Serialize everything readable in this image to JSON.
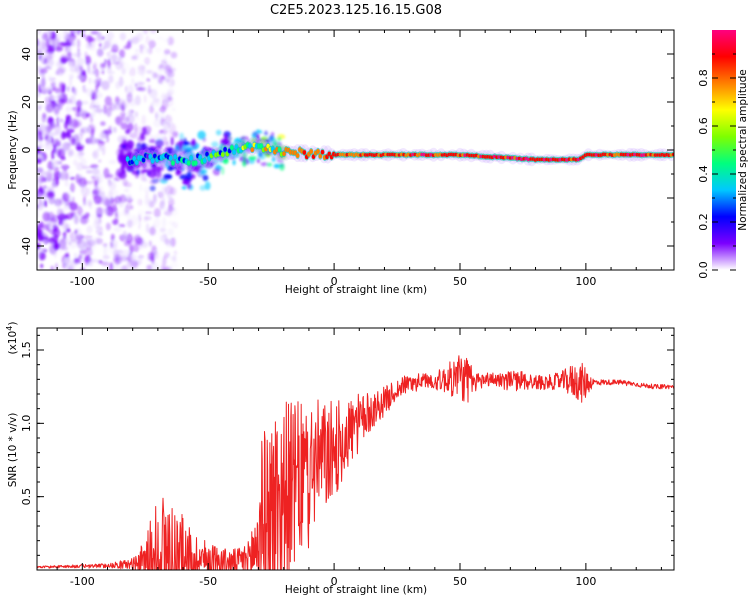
{
  "title": "C2E5.2023.125.16.15.G08",
  "chart_data": [
    {
      "type": "heatmap",
      "name": "spectrogram",
      "xlabel": "Height of straight line (km)",
      "ylabel": "Frequency (Hz)",
      "xlim": [
        -118,
        135
      ],
      "ylim": [
        -50,
        50
      ],
      "x_ticks": [
        -100,
        -50,
        0,
        50,
        100
      ],
      "y_ticks": [
        -40,
        -20,
        0,
        20,
        40
      ],
      "colorbar": {
        "label": "Normalized spectral amplitude",
        "range": [
          0,
          1
        ],
        "ticks": [
          0.0,
          0.2,
          0.4,
          0.6,
          0.8
        ],
        "colors": [
          "#ffffff",
          "#7b00ff",
          "#0000ff",
          "#00c8ff",
          "#00ff7f",
          "#7fff00",
          "#ffff00",
          "#ff7f00",
          "#ff0000",
          "#ff007f"
        ]
      },
      "signal_track": [
        {
          "x": -118,
          "y": 0,
          "amp": 0.2
        },
        {
          "x": -80,
          "y": -4,
          "amp": 0.3
        },
        {
          "x": -70,
          "y": -3,
          "amp": 0.4
        },
        {
          "x": -60,
          "y": -5,
          "amp": 0.45
        },
        {
          "x": -50,
          "y": -3,
          "amp": 0.5
        },
        {
          "x": -40,
          "y": 0,
          "amp": 0.6
        },
        {
          "x": -30,
          "y": 2,
          "amp": 0.75
        },
        {
          "x": -20,
          "y": -1,
          "amp": 0.8
        },
        {
          "x": 0,
          "y": -2,
          "amp": 0.9
        },
        {
          "x": 50,
          "y": -2,
          "amp": 0.95
        },
        {
          "x": 80,
          "y": -4,
          "amp": 0.95
        },
        {
          "x": 97,
          "y": -4,
          "amp": 0.95
        },
        {
          "x": 100,
          "y": -2,
          "amp": 0.95
        },
        {
          "x": 135,
          "y": -2,
          "amp": 0.9
        }
      ]
    },
    {
      "type": "line",
      "name": "snr",
      "xlabel": "Height of straight line (km)",
      "ylabel": "SNR (10 * v/v)",
      "y_multiplier": "(x10",
      "y_multiplier_exp": "4",
      "y_multiplier_close": ")",
      "xlim": [
        -118,
        135
      ],
      "ylim": [
        0,
        16500
      ],
      "x_ticks": [
        -100,
        -50,
        0,
        50,
        100
      ],
      "y_ticks": [
        5000,
        10000,
        15000
      ],
      "y_tick_labels": [
        "0.5",
        "1.0",
        "1.5"
      ],
      "color": "#ee2222",
      "envelope": {
        "x": [
          -118,
          -90,
          -80,
          -76,
          -72,
          -70,
          -66,
          -62,
          -58,
          -54,
          -50,
          -46,
          -42,
          -38,
          -34,
          -31,
          -29,
          -26,
          -23,
          -20,
          -17,
          -14,
          -11,
          -8,
          -5,
          -2,
          1,
          4,
          8,
          12,
          16,
          20,
          25,
          30,
          35,
          40,
          45,
          50,
          53,
          56,
          60,
          65,
          70,
          75,
          80,
          85,
          90,
          95,
          99,
          101,
          103,
          108,
          115,
          122,
          128,
          135
        ],
        "base": [
          200,
          300,
          400,
          600,
          1000,
          1400,
          1300,
          1200,
          1000,
          800,
          700,
          600,
          500,
          600,
          800,
          1500,
          3000,
          3800,
          4500,
          5000,
          5500,
          6000,
          6600,
          7200,
          7600,
          7900,
          8300,
          9000,
          9800,
          10400,
          11000,
          11500,
          12300,
          12800,
          12900,
          12900,
          13000,
          13200,
          13000,
          12800,
          13000,
          13000,
          13000,
          12900,
          12800,
          12800,
          12900,
          12900,
          12700,
          12800,
          12800,
          12800,
          12800,
          12600,
          12500,
          12500
        ],
        "spread": [
          60,
          150,
          400,
          1200,
          3000,
          4500,
          3800,
          3000,
          2200,
          1600,
          1300,
          1100,
          900,
          900,
          1200,
          3500,
          6000,
          6500,
          7000,
          6800,
          6000,
          5500,
          5000,
          4500,
          4000,
          3600,
          3200,
          2800,
          2200,
          1600,
          1200,
          1000,
          700,
          600,
          500,
          600,
          1000,
          1800,
          1500,
          700,
          500,
          500,
          600,
          700,
          500,
          500,
          600,
          1200,
          1400,
          800,
          250,
          180,
          160,
          160,
          150,
          150
        ]
      }
    }
  ]
}
